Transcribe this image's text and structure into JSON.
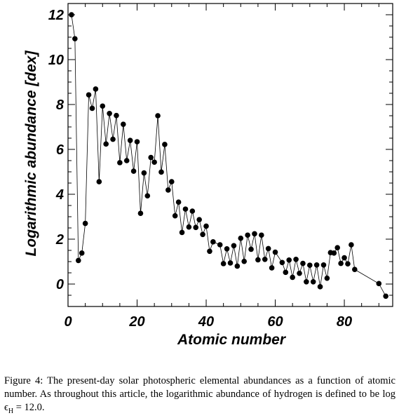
{
  "chart_data": {
    "type": "scatter",
    "connected": true,
    "title": "",
    "xlabel": "Atomic number",
    "ylabel": "Logarithmic abundance [dex]",
    "xlim": [
      0,
      94
    ],
    "ylim": [
      -1,
      12.5
    ],
    "xticks": [
      0,
      20,
      40,
      60,
      80
    ],
    "yticks": [
      0,
      2,
      4,
      6,
      8,
      10,
      12
    ],
    "xtick_labels": [
      "0",
      "20",
      "40",
      "60",
      "80"
    ],
    "ytick_labels": [
      "0",
      "2",
      "4",
      "6",
      "8",
      "10",
      "12"
    ],
    "grid": false,
    "legend": "none",
    "colors": {
      "marker": "#000000",
      "line": "#000000",
      "axes": "#000000"
    },
    "series": [
      {
        "x": [
          1,
          2,
          3,
          4,
          5,
          6,
          7,
          8,
          9,
          10,
          11,
          12,
          13,
          14,
          15,
          16,
          17,
          18,
          19,
          20,
          21,
          22,
          23,
          24,
          25,
          26,
          27,
          28,
          29,
          30,
          31,
          32,
          33,
          34,
          35,
          36,
          37,
          38,
          39,
          40,
          41,
          42,
          44,
          45,
          46,
          47,
          48,
          49,
          50,
          51,
          52,
          53,
          54,
          55,
          56,
          57,
          58,
          59,
          60,
          62,
          63,
          64,
          65,
          66,
          67,
          68,
          69,
          70,
          71,
          72,
          73,
          74,
          75,
          76,
          77,
          78,
          79,
          80,
          81,
          82,
          83,
          90,
          92
        ],
        "y": [
          12.0,
          10.93,
          1.05,
          1.38,
          2.7,
          8.43,
          7.83,
          8.69,
          4.56,
          7.93,
          6.24,
          7.6,
          6.45,
          7.51,
          5.41,
          7.12,
          5.5,
          6.4,
          5.03,
          6.34,
          3.15,
          4.95,
          3.93,
          5.64,
          5.43,
          7.5,
          4.99,
          6.22,
          4.19,
          4.56,
          3.04,
          3.65,
          2.3,
          3.34,
          2.54,
          3.25,
          2.52,
          2.87,
          2.21,
          2.58,
          1.46,
          1.88,
          1.75,
          0.91,
          1.57,
          0.94,
          1.71,
          0.8,
          2.04,
          1.01,
          2.18,
          1.55,
          2.24,
          1.08,
          2.18,
          1.1,
          1.58,
          0.72,
          1.42,
          0.96,
          0.52,
          1.07,
          0.3,
          1.1,
          0.48,
          0.92,
          0.1,
          0.84,
          0.1,
          0.85,
          -0.12,
          0.85,
          0.26,
          1.4,
          1.38,
          1.62,
          0.92,
          1.17,
          0.9,
          1.75,
          0.65,
          0.02,
          -0.54
        ]
      }
    ]
  },
  "figure": {
    "caption_label": "Figure 4:",
    "caption_text": "The present-day solar photospheric elemental abundances as a function of atomic number.  As throughout this article, the logarithmic abundance of hydrogen is defined to be log ϵ",
    "caption_subscript": "H",
    "caption_end": " = 12.0."
  }
}
